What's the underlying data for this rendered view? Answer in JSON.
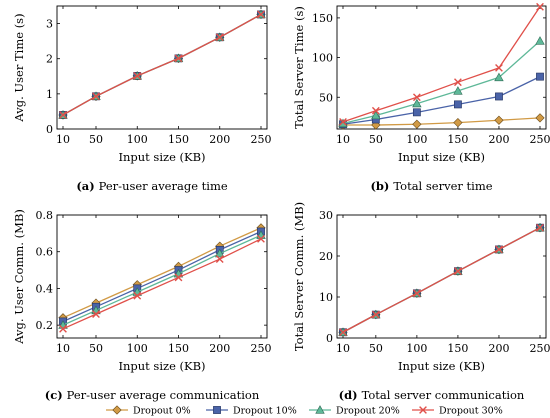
{
  "chart_data": [
    {
      "type": "line",
      "caption_tag": "(a)",
      "caption_text": "Per-user average time",
      "xlabel": "Input size (KB)",
      "ylabel": "Avg. User Time (s)",
      "x": [
        10,
        50,
        100,
        150,
        200,
        250
      ],
      "xticks": [
        "10",
        "50",
        "100",
        "150",
        "200",
        "250"
      ],
      "ylim": [
        0,
        3.5
      ],
      "yticks": [
        0,
        1,
        2,
        3
      ],
      "series": [
        {
          "name": "Dropout 0%",
          "values": [
            0.4,
            0.93,
            1.51,
            2.01,
            2.61,
            3.26
          ]
        },
        {
          "name": "Dropout 10%",
          "values": [
            0.4,
            0.93,
            1.51,
            2.01,
            2.61,
            3.26
          ]
        },
        {
          "name": "Dropout 20%",
          "values": [
            0.4,
            0.93,
            1.51,
            2.01,
            2.61,
            3.26
          ]
        },
        {
          "name": "Dropout 30%",
          "values": [
            0.4,
            0.93,
            1.51,
            2.01,
            2.61,
            3.26
          ]
        }
      ]
    },
    {
      "type": "line",
      "caption_tag": "(b)",
      "caption_text": "Total server time",
      "xlabel": "Input size (KB)",
      "ylabel": "Total Server Time (s)",
      "x": [
        10,
        50,
        100,
        150,
        200,
        250
      ],
      "xticks": [
        "10",
        "50",
        "100",
        "150",
        "200",
        "250"
      ],
      "ylim": [
        10,
        165
      ],
      "yticks": [
        50,
        100,
        150
      ],
      "series": [
        {
          "name": "Dropout 0%",
          "values": [
            15,
            15,
            16,
            18,
            21,
            24
          ]
        },
        {
          "name": "Dropout 10%",
          "values": [
            16,
            22,
            31,
            41,
            51,
            76
          ]
        },
        {
          "name": "Dropout 20%",
          "values": [
            17,
            27,
            42,
            58,
            75,
            121
          ]
        },
        {
          "name": "Dropout 30%",
          "values": [
            19,
            33,
            50,
            69,
            87,
            164
          ]
        }
      ]
    },
    {
      "type": "line",
      "caption_tag": "(c)",
      "caption_text": "Per-user average communication",
      "xlabel": "Input size (KB)",
      "ylabel": "Avg. User Comm. (MB)",
      "x": [
        10,
        50,
        100,
        150,
        200,
        250
      ],
      "xticks": [
        "10",
        "50",
        "100",
        "150",
        "200",
        "250"
      ],
      "ylim": [
        0.13,
        0.8
      ],
      "yticks": [
        0.2,
        0.4,
        0.6,
        0.8
      ],
      "series": [
        {
          "name": "Dropout 0%",
          "values": [
            0.24,
            0.32,
            0.42,
            0.52,
            0.63,
            0.73
          ]
        },
        {
          "name": "Dropout 10%",
          "values": [
            0.22,
            0.3,
            0.4,
            0.5,
            0.61,
            0.71
          ]
        },
        {
          "name": "Dropout 20%",
          "values": [
            0.2,
            0.28,
            0.38,
            0.48,
            0.59,
            0.69
          ]
        },
        {
          "name": "Dropout 30%",
          "values": [
            0.18,
            0.26,
            0.36,
            0.46,
            0.56,
            0.67
          ]
        }
      ]
    },
    {
      "type": "line",
      "caption_tag": "(d)",
      "caption_text": "Total server communication",
      "xlabel": "Input size (KB)",
      "ylabel": "Total Server Comm. (MB)",
      "x": [
        10,
        50,
        100,
        150,
        200,
        250
      ],
      "xticks": [
        "10",
        "50",
        "100",
        "150",
        "200",
        "250"
      ],
      "ylim": [
        0,
        30
      ],
      "yticks": [
        0,
        10,
        20,
        30
      ],
      "series": [
        {
          "name": "Dropout 0%",
          "values": [
            1.4,
            5.7,
            10.9,
            16.3,
            21.6,
            26.9
          ]
        },
        {
          "name": "Dropout 10%",
          "values": [
            1.4,
            5.7,
            10.9,
            16.3,
            21.6,
            26.9
          ]
        },
        {
          "name": "Dropout 20%",
          "values": [
            1.4,
            5.7,
            10.9,
            16.3,
            21.6,
            26.9
          ]
        },
        {
          "name": "Dropout 30%",
          "values": [
            1.4,
            5.7,
            10.9,
            16.3,
            21.6,
            26.9
          ]
        }
      ]
    }
  ],
  "legend": {
    "placement": "bottom",
    "entries": [
      {
        "label": "Dropout 0%",
        "color": "#d19a45",
        "marker": "diamond"
      },
      {
        "label": "Dropout 10%",
        "color": "#4a63a8",
        "marker": "square"
      },
      {
        "label": "Dropout 20%",
        "color": "#5eb898",
        "marker": "triangle"
      },
      {
        "label": "Dropout 30%",
        "color": "#e0504a",
        "marker": "cross"
      }
    ]
  }
}
